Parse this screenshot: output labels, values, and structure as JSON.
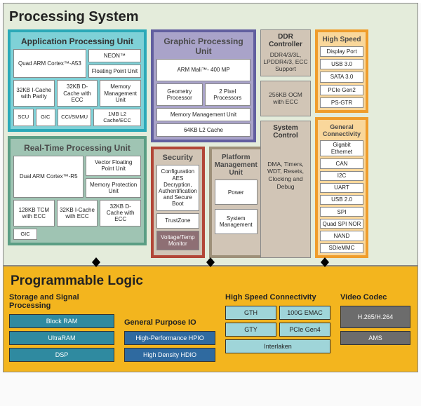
{
  "colors": {
    "apu_border": "#2ba9b8",
    "apu_bg": "#7fd1d7",
    "rpu_border": "#5b9e84",
    "rpu_bg": "#9fc4b3",
    "gpu_border": "#625f9f",
    "gpu_bg": "#a9a3c9",
    "sec_border": "#b24637",
    "tan_bg": "#d1c5b6",
    "tan_border": "#a39984",
    "orange_border": "#ef9d2c",
    "orange_bg": "#f9d79b",
    "pl_bg": "#f3b51e",
    "ps_bg": "#e4ecdb",
    "storage_cell": "#2f8aa0",
    "gpio_cell": "#2f6aa0",
    "hsc_cell": "#9fd5d9",
    "codec_cell": "#6c6c6c"
  },
  "ps": {
    "title": "Processing System",
    "apu": {
      "title": "Application Processing Unit",
      "quad_arm": "Quad ARM Cortex™-A53",
      "neon": "NEON™",
      "fpu": "Floating Point Unit",
      "icache": "32KB I-Cache with Parity",
      "dcache": "32KB D-Cache with ECC",
      "mmu": "Memory Management Unit",
      "scu": "SCU",
      "gic": "GIC",
      "cci": "CCI/SMMU",
      "l2": "1MB L2 Cache/ECC"
    },
    "rpu": {
      "title": "Real-Time Processing Unit",
      "dual_arm": "Dual ARM Cortex™-R5",
      "vfpu": "Vector Floating Point Unit",
      "mpu": "Memory Protection Unit",
      "tcm": "128KB TCM with ECC",
      "icache": "32KB I-Cache with ECC",
      "dcache": "32KB D-Cache with ECC",
      "gic": "GIC"
    },
    "gpu": {
      "title": "Graphic Processing Unit",
      "mali": "ARM Mali™- 400 MP",
      "geom": "Geometry Processor",
      "pixel": "2 Pixel Processors",
      "mmu": "Memory Management Unit",
      "l2": "64KB L2 Cache"
    },
    "sec": {
      "title": "Security",
      "cfg": "Configuration AES Decryption, Authentification and Secure Boot",
      "tz": "TrustZone",
      "vt": "Voltage/Temp Monitor"
    },
    "pmu": {
      "title": "Platform Management Unit",
      "power": "Power",
      "sysmgmt": "System Management"
    },
    "ddr": {
      "title": "DDR Controller",
      "body": "DDR4/3/3L, LPDDR4/3, ECC Support"
    },
    "ocm": {
      "body": "256KB OCM with ECC"
    },
    "sysctl": {
      "title": "System Control",
      "body": "DMA, Timers, WDT, Resets, Clocking and Debug"
    },
    "hs": {
      "title": "High Speed",
      "items": [
        "Display Port",
        "USB 3.0",
        "SATA 3.0",
        "PCIe Gen2",
        "PS-GTR"
      ]
    },
    "gcon": {
      "title": "General Connectivity",
      "items": [
        "Gigabit Ethernet",
        "CAN",
        "I2C",
        "UART",
        "USB 2.0",
        "SPI",
        "Quad SPI NOR",
        "NAND",
        "SD/eMMC"
      ]
    }
  },
  "pl": {
    "title": "Programmable Logic",
    "storage": {
      "title": "Storage and Signal Processing",
      "items": [
        "Block RAM",
        "UltraRAM",
        "DSP"
      ]
    },
    "gpio": {
      "title": "General Purpose IO",
      "items": [
        "High-Performance HPIO",
        "High Density HDIO"
      ]
    },
    "hsc": {
      "title": "High Speed Connectivity",
      "rows": [
        [
          "GTH",
          "100G EMAC"
        ],
        [
          "GTY",
          "PCIe Gen4"
        ],
        [
          "Interlaken",
          ""
        ]
      ]
    },
    "codec": {
      "title": "Video Codec",
      "items": [
        "H.265/H.264",
        "AMS"
      ]
    }
  }
}
